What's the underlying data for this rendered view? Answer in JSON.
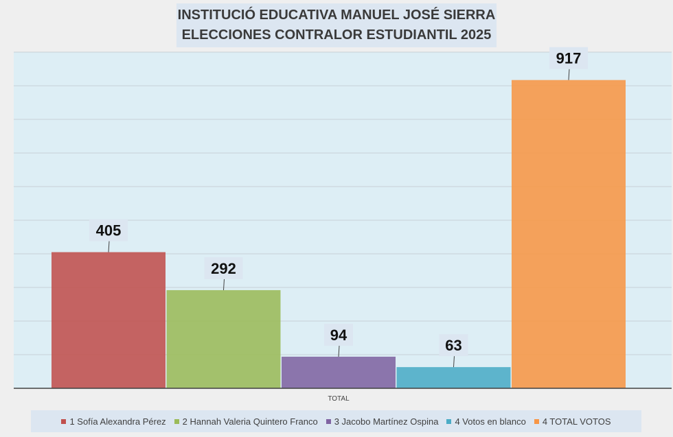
{
  "chart_data": {
    "type": "bar",
    "title": "INSTITUCIÓ EDUCATIVA MANUEL JOSÉ SIERRA",
    "subtitle": "ELECCIONES CONTRALOR ESTUDIANTIL 2025",
    "categories": [
      "TOTAL"
    ],
    "series": [
      {
        "name": "1 Sofía Alexandra Pérez",
        "values": [
          405
        ],
        "color": "#c0504d"
      },
      {
        "name": "2 Hannah Valeria Quintero Franco",
        "values": [
          292
        ],
        "color": "#9bbb59"
      },
      {
        "name": "3 Jacobo Martínez Ospina",
        "values": [
          94
        ],
        "color": "#8064a2"
      },
      {
        "name": "4 Votos en blanco",
        "values": [
          63
        ],
        "color": "#4bacc6"
      },
      {
        "name": "4 TOTAL VOTOS",
        "values": [
          917
        ],
        "color": "#f79646"
      }
    ],
    "ylim": [
      0,
      1000
    ],
    "grid": true,
    "legend_position": "bottom",
    "data_labels": [
      "405",
      "292",
      "94",
      "63",
      "917"
    ]
  },
  "colors": {
    "plot_background": "#ddeef5",
    "page_background": "#efefef",
    "label_box": "#dce6f1",
    "gridline": "#c8d0d6",
    "axis": "#404040"
  }
}
